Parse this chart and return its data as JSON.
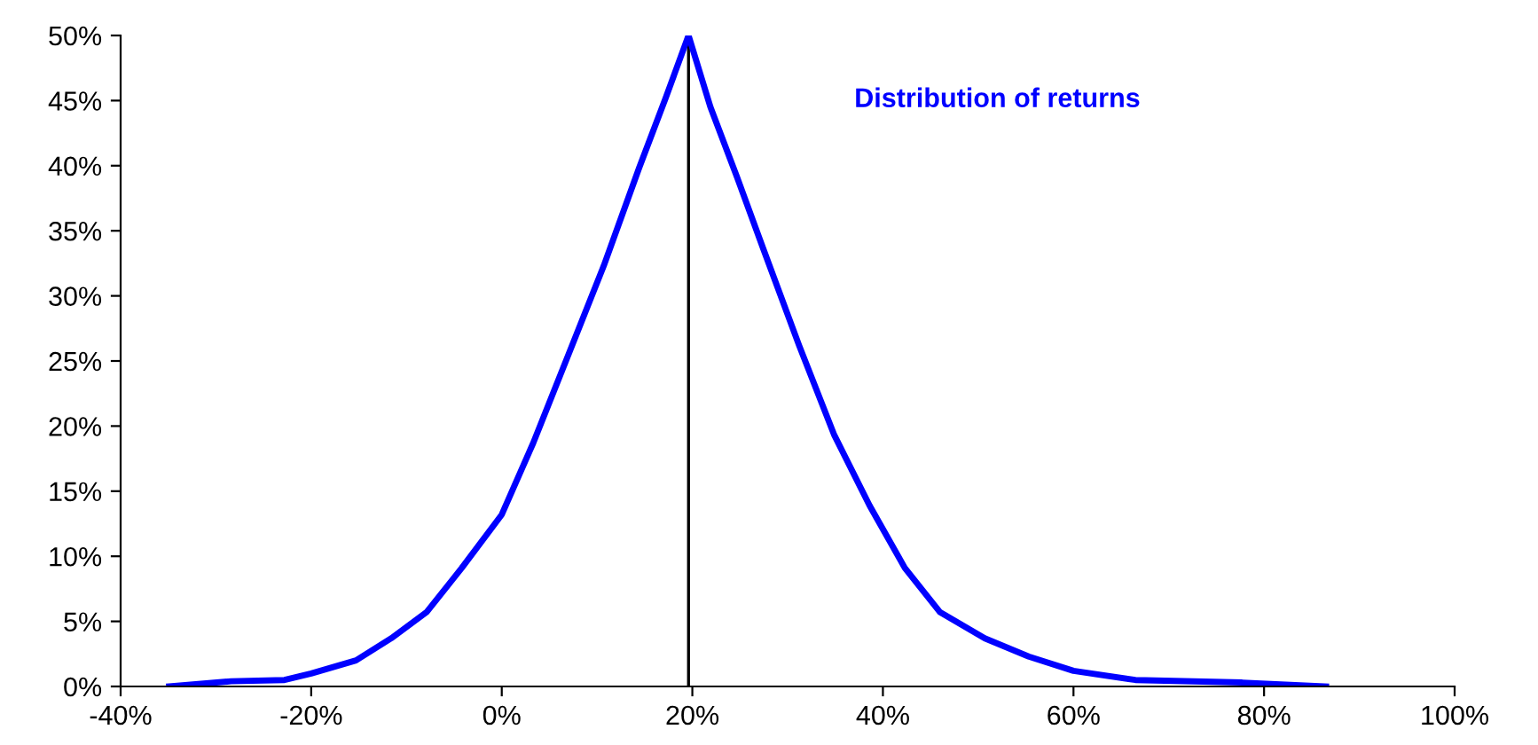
{
  "chart_data": {
    "type": "line",
    "x": [
      -34.9,
      -28.4,
      -22.8,
      -20,
      -15.3,
      -11.6,
      -7.9,
      -4.2,
      0,
      3.3,
      7,
      10.7,
      14.4,
      17.2,
      19.6,
      21.9,
      24.7,
      27.4,
      31.2,
      34.9,
      38.6,
      42.3,
      46,
      50.7,
      55.3,
      60,
      66.5,
      77.7,
      86.5
    ],
    "series": [
      {
        "color": "#0000ff",
        "values": [
          0,
          0.4,
          0.5,
          1,
          2,
          3.7,
          5.7,
          9.1,
          13.2,
          18.7,
          25.5,
          32.3,
          39.8,
          45.2,
          50,
          44.5,
          39.1,
          33.7,
          26.2,
          19.3,
          13.9,
          9.1,
          5.7,
          3.7,
          2.3,
          1.2,
          0.5,
          0.3,
          0
        ]
      }
    ],
    "xlim": [
      -40,
      100
    ],
    "xticks": [
      {
        "value": -40,
        "label": "-40%"
      },
      {
        "value": -20,
        "label": "-20%"
      },
      {
        "value": 0,
        "label": "0%"
      },
      {
        "value": 20,
        "label": "20%"
      },
      {
        "value": 40,
        "label": "40%"
      },
      {
        "value": 60,
        "label": "60%"
      },
      {
        "value": 80,
        "label": "80%"
      },
      {
        "value": 100,
        "label": "100%"
      }
    ],
    "ylim": [
      0,
      50
    ],
    "yticks": [
      {
        "value": 0,
        "label": "0%"
      },
      {
        "value": 5,
        "label": "5%"
      },
      {
        "value": 10,
        "label": "10%"
      },
      {
        "value": 15,
        "label": "15%"
      },
      {
        "value": 20,
        "label": "20%"
      },
      {
        "value": 25,
        "label": "25%"
      },
      {
        "value": 30,
        "label": "30%"
      },
      {
        "value": 35,
        "label": "35%"
      },
      {
        "value": 40,
        "label": "40%"
      },
      {
        "value": 45,
        "label": "45%"
      },
      {
        "value": 50,
        "label": "50%"
      }
    ],
    "ref_lines": [
      {
        "axis": "x",
        "value": 19.6,
        "color": "#000000"
      }
    ],
    "annotations": [
      "Distribution of returns"
    ],
    "grid": false,
    "legend": false,
    "marker": "none",
    "line_style": "solid"
  }
}
